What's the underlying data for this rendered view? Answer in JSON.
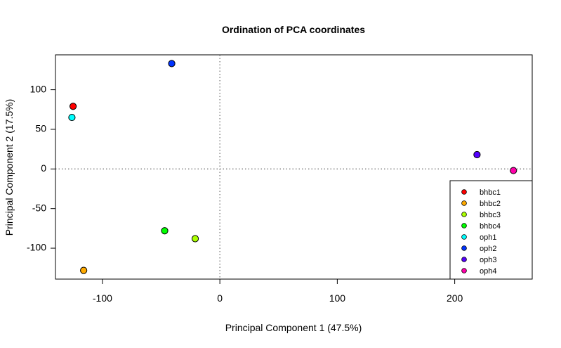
{
  "chart_data": {
    "type": "scatter",
    "title": "Ordination of PCA coordinates",
    "xlabel": "Principal Component 1 (47.5%)",
    "ylabel": "Principal Component 2 (17.5%)",
    "xlim": [
      -140,
      266
    ],
    "ylim": [
      -139,
      144
    ],
    "xticks": [
      -100,
      0,
      100,
      200
    ],
    "yticks": [
      -100,
      -50,
      0,
      50,
      100
    ],
    "reference_lines": {
      "x": 0,
      "y": 0,
      "style": "dotted"
    },
    "legend_position": "bottom-right",
    "grid": false,
    "series": [
      {
        "name": "bhbc1",
        "color": "#FF0000",
        "x": -125,
        "y": 79
      },
      {
        "name": "bhbc2",
        "color": "#FFAA00",
        "x": -116,
        "y": -128
      },
      {
        "name": "bhbc3",
        "color": "#AAFF00",
        "x": -21,
        "y": -88
      },
      {
        "name": "bhbc4",
        "color": "#00FF00",
        "x": -47,
        "y": -78
      },
      {
        "name": "oph1",
        "color": "#00FFFF",
        "x": -126,
        "y": 65
      },
      {
        "name": "oph2",
        "color": "#0033FF",
        "x": -41,
        "y": 133
      },
      {
        "name": "oph3",
        "color": "#5500FF",
        "x": 219,
        "y": 18
      },
      {
        "name": "oph4",
        "color": "#FF00AA",
        "x": 250,
        "y": -2
      }
    ]
  }
}
